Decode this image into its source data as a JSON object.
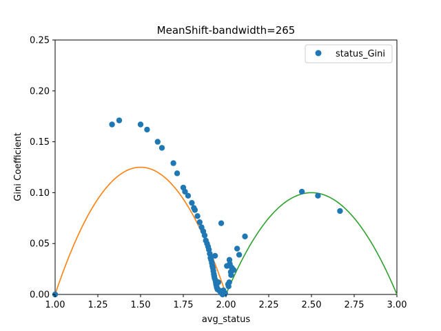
{
  "chart_data": {
    "type": "scatter",
    "title": "MeanShift-bandwidth=265",
    "xlabel": "avg_status",
    "ylabel": "Gini Coefficient",
    "xlim": [
      1.0,
      3.0
    ],
    "ylim": [
      0.0,
      0.25
    ],
    "xticks": [
      "1.00",
      "1.25",
      "1.50",
      "1.75",
      "2.00",
      "2.25",
      "2.50",
      "2.75",
      "3.00"
    ],
    "yticks": [
      "0.00",
      "0.05",
      "0.10",
      "0.15",
      "0.20",
      "0.25"
    ],
    "grid": false,
    "legend_position": "top-right",
    "series": [
      {
        "name": "status_Gini",
        "color": "#1f77b4",
        "x": [
          1.0,
          1.333,
          1.375,
          1.5,
          1.538,
          1.6,
          1.625,
          1.692,
          1.714,
          1.75,
          1.76,
          1.778,
          1.8,
          1.812,
          1.818,
          1.833,
          1.846,
          1.857,
          1.867,
          1.875,
          1.882,
          1.889,
          1.895,
          1.9,
          1.905,
          1.909,
          1.913,
          1.917,
          1.92,
          1.923,
          1.926,
          1.929,
          1.931,
          1.933,
          1.936,
          1.938,
          1.94,
          1.942,
          1.944,
          1.946,
          1.948,
          1.95,
          1.955,
          1.96,
          1.965,
          1.97,
          1.975,
          1.98,
          1.985,
          1.99,
          1.995,
          1.972,
          2.005,
          2.012,
          2.015,
          2.02,
          2.025,
          2.03,
          2.035,
          2.019,
          2.022,
          2.028,
          2.045,
          2.065,
          2.077,
          2.111,
          2.444,
          2.538,
          2.667
        ],
        "y": [
          0.0,
          0.167,
          0.171,
          0.167,
          0.162,
          0.15,
          0.144,
          0.129,
          0.119,
          0.105,
          0.101,
          0.097,
          0.09,
          0.085,
          0.083,
          0.077,
          0.071,
          0.066,
          0.062,
          0.058,
          0.053,
          0.05,
          0.047,
          0.044,
          0.04,
          0.036,
          0.034,
          0.031,
          0.028,
          0.026,
          0.023,
          0.02,
          0.018,
          0.016,
          0.038,
          0.014,
          0.012,
          0.01,
          0.009,
          0.007,
          0.006,
          0.005,
          0.012,
          0.004,
          0.003,
          0.002,
          0.001,
          0.0,
          0.004,
          0.002,
          0.001,
          0.07,
          0.028,
          0.01,
          0.008,
          0.034,
          0.028,
          0.019,
          0.026,
          0.012,
          0.03,
          0.022,
          0.024,
          0.045,
          0.039,
          0.057,
          0.101,
          0.097,
          0.082
        ]
      }
    ],
    "fit_curves": [
      {
        "color": "#ff7f0e",
        "coefficients": [
          -0.5,
          1.5,
          -1.0
        ],
        "x_range": [
          1.0,
          2.0
        ]
      },
      {
        "color": "#2ca02c",
        "coefficients": [
          -0.4,
          2.0,
          -2.4
        ],
        "x_range": [
          2.0,
          3.0
        ]
      }
    ]
  }
}
